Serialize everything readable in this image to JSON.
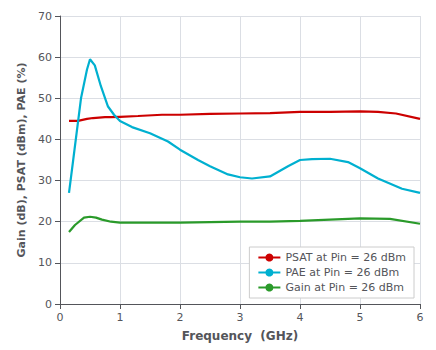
{
  "chart_data": {
    "type": "line",
    "xlabel": "Frequency  (GHz)",
    "ylabel": "Gain (dB), PSAT (dBm), PAE (%)",
    "xlim": [
      0,
      6
    ],
    "xticks": [
      0,
      1,
      2,
      3,
      4,
      5,
      6
    ],
    "ylim": [
      0,
      70
    ],
    "yticks": [
      0,
      10,
      20,
      30,
      40,
      50,
      60,
      70
    ],
    "grid": true,
    "legend": "lower right",
    "series": [
      {
        "name": "PSAT at Pin = 26 dBm",
        "color": "#cc0000",
        "x": [
          0.15,
          0.3,
          0.45,
          0.55,
          0.65,
          0.75,
          0.85,
          1.0,
          1.3,
          1.7,
          2.0,
          2.5,
          3.0,
          3.5,
          4.0,
          4.5,
          5.0,
          5.3,
          5.6,
          6.0
        ],
        "values": [
          44.5,
          44.5,
          45.0,
          45.2,
          45.3,
          45.4,
          45.4,
          45.5,
          45.7,
          46.0,
          46.0,
          46.2,
          46.3,
          46.4,
          46.7,
          46.7,
          46.8,
          46.7,
          46.3,
          45.0
        ]
      },
      {
        "name": "PAE at Pin = 26 dBm",
        "color": "#00b0d0",
        "x": [
          0.15,
          0.22,
          0.35,
          0.45,
          0.5,
          0.58,
          0.68,
          0.8,
          0.9,
          1.0,
          1.2,
          1.5,
          1.8,
          2.0,
          2.3,
          2.5,
          2.8,
          3.0,
          3.2,
          3.5,
          3.8,
          4.0,
          4.2,
          4.5,
          4.8,
          5.0,
          5.3,
          5.7,
          6.0
        ],
        "values": [
          27.0,
          35.0,
          50.0,
          57.0,
          59.5,
          58.0,
          53.0,
          48.0,
          46.0,
          44.5,
          43.0,
          41.5,
          39.5,
          37.5,
          35.0,
          33.5,
          31.5,
          30.8,
          30.5,
          31.0,
          33.5,
          35.0,
          35.2,
          35.3,
          34.5,
          33.0,
          30.5,
          28.0,
          27.0
        ]
      },
      {
        "name": "Gain at Pin = 26 dBm",
        "color": "#2a9a2a",
        "x": [
          0.15,
          0.25,
          0.4,
          0.5,
          0.6,
          0.7,
          0.85,
          1.0,
          1.5,
          2.0,
          2.5,
          3.0,
          3.5,
          4.0,
          4.5,
          5.0,
          5.5,
          6.0
        ],
        "values": [
          17.5,
          19.2,
          21.0,
          21.2,
          21.0,
          20.5,
          20.0,
          19.8,
          19.8,
          19.8,
          19.9,
          20.0,
          20.0,
          20.2,
          20.5,
          20.8,
          20.7,
          19.5
        ]
      }
    ]
  }
}
